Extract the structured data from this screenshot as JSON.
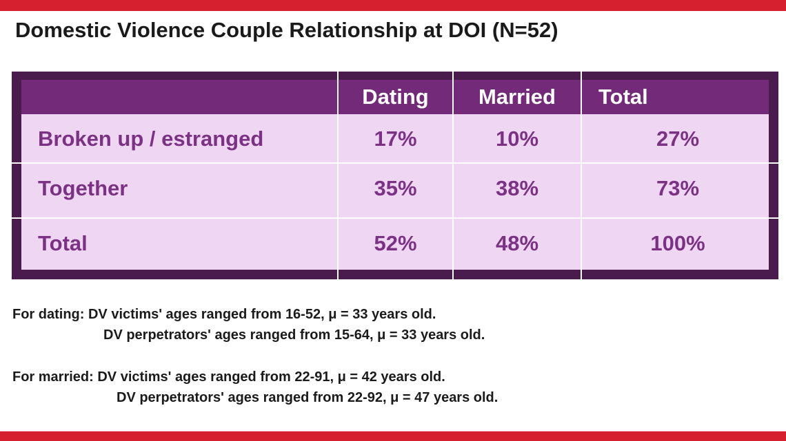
{
  "title": "Domestic Violence Couple Relationship at DOI (N=52)",
  "colors": {
    "accent_bar": "#d6202f",
    "table_border": "#4a1c4d",
    "header_bg": "#722a79",
    "cell_bg": "#efd6f3",
    "cell_text": "#7b3184"
  },
  "table": {
    "headers": [
      "",
      "Dating",
      "Married",
      "Total"
    ],
    "rows": [
      {
        "label": "Broken up / estranged",
        "dating": "17%",
        "married": "10%",
        "total": "27%"
      },
      {
        "label": "Together",
        "dating": "35%",
        "married": "38%",
        "total": "73%"
      },
      {
        "label": "Total",
        "dating": "52%",
        "married": "48%",
        "total": "100%"
      }
    ]
  },
  "notes": {
    "dating_line1": "For dating: DV victims' ages ranged from 16-52, μ = 33 years old.",
    "dating_line2": "DV perpetrators' ages ranged from 15-64, μ = 33 years old.",
    "married_line1": "For married: DV victims' ages ranged from 22-91, μ = 42 years old.",
    "married_line2": "DV perpetrators' ages ranged from 22-92, μ = 47 years old."
  }
}
